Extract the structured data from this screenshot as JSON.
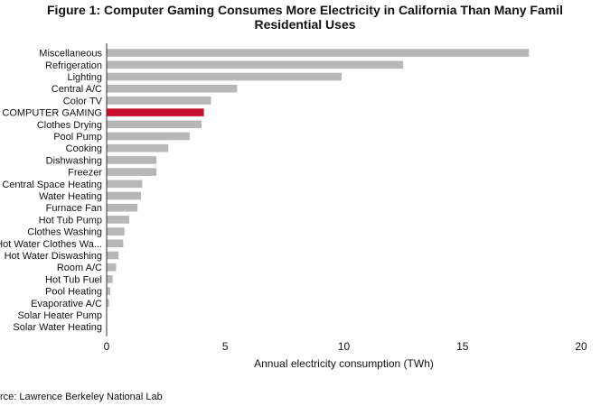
{
  "figure": {
    "title_line1": "Figure 1: Computer Gaming Consumes More Electricity in California Than Many Famil",
    "title_line2": "Residential Uses",
    "source": "rce: Lawrence Berkeley National Lab"
  },
  "chart_data": {
    "type": "bar",
    "orientation": "horizontal",
    "title": "Figure 1: Computer Gaming Consumes More Electricity in California Than Many Famil Residential Uses",
    "xlabel": "Annual electricity consumption (TWh)",
    "ylabel": "",
    "xlim": [
      0,
      20
    ],
    "xticks": [
      0,
      5,
      10,
      15,
      20
    ],
    "grid": false,
    "categories": [
      "Miscellaneous",
      "Refrigeration",
      "Lighting",
      "Central A/C",
      "Color TV",
      "COMPUTER GAMING",
      "Clothes Drying",
      "Pool Pump",
      "Cooking",
      "Dishwashing",
      "Freezer",
      "Central Space Heating",
      "Water Heating",
      "Furnace Fan",
      "Hot Tub Pump",
      "Clothes Washing",
      "Hot Water Clothes Wa...",
      "Hot Water Diswashing",
      "Room A/C",
      "Hot Tub Fuel",
      "Pool Heating",
      "Evaporative A/C",
      "Solar Heater Pump",
      "Solar Water Heating"
    ],
    "values": [
      17.8,
      12.5,
      9.9,
      5.5,
      4.4,
      4.1,
      4.0,
      3.5,
      2.6,
      2.1,
      2.1,
      1.5,
      1.45,
      1.3,
      0.95,
      0.75,
      0.7,
      0.5,
      0.4,
      0.25,
      0.15,
      0.1,
      0.02,
      0.01
    ],
    "colors": {
      "default": "#b7b7b7",
      "highlight": "#c8102e"
    },
    "highlight_category": "COMPUTER GAMING"
  }
}
